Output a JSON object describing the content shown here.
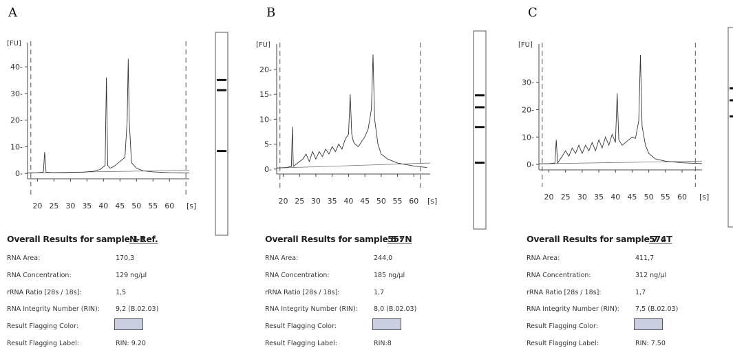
{
  "figure": {
    "panels": [
      {
        "letter": "A",
        "results": {
          "title": "Overall Results for sample 1 :",
          "sample": "N-Ref.",
          "rows": [
            {
              "label": "RNA Area:",
              "value": "170,3"
            },
            {
              "label": "RNA Concentration:",
              "value": "129 ng/µl"
            },
            {
              "label": "rRNA Ratio [28s / 18s]:",
              "value": "1,5"
            },
            {
              "label": "RNA Integrity Number (RIN):",
              "value": "9,2  (B.02.03)"
            },
            {
              "label": "Result Flagging Color:",
              "value": ""
            },
            {
              "label": "Result Flagging Label:",
              "value": "RIN: 9.20"
            }
          ],
          "flag_color": "#c9cfe0"
        }
      },
      {
        "letter": "B",
        "results": {
          "title": "Overall Results for sample 5 :",
          "sample": "557N",
          "rows": [
            {
              "label": "RNA Area:",
              "value": "244,0"
            },
            {
              "label": "RNA Concentration:",
              "value": "185 ng/µl"
            },
            {
              "label": "rRNA Ratio [28s / 18s]:",
              "value": "1,7"
            },
            {
              "label": "RNA Integrity Number (RIN):",
              "value": "8,0  (B.02.03)"
            },
            {
              "label": "Result Flagging Color:",
              "value": ""
            },
            {
              "label": "Result Flagging Label:",
              "value": "RIN:8"
            }
          ],
          "flag_color": "#c9cfe0"
        }
      },
      {
        "letter": "C",
        "results": {
          "title": "Overall Results for sample 7 :",
          "sample": "574T",
          "rows": [
            {
              "label": "RNA Area:",
              "value": "411,7"
            },
            {
              "label": "RNA Concentration:",
              "value": "312 ng/µl"
            },
            {
              "label": "rRNA Ratio [28s / 18s]:",
              "value": "1,7"
            },
            {
              "label": "RNA Integrity Number (RIN):",
              "value": "7,5  (B.02.03)"
            },
            {
              "label": "Result Flagging Color:",
              "value": ""
            },
            {
              "label": "Result Flagging Label:",
              "value": "RIN: 7.50"
            }
          ],
          "flag_color": "#c9cfe0"
        }
      }
    ]
  },
  "chart_data": [
    {
      "type": "line",
      "ylabel": "[FU]",
      "xlabel": "[s]",
      "x_ticks": [
        20,
        25,
        30,
        35,
        40,
        45,
        50,
        55,
        60
      ],
      "y_ticks": [
        0,
        10,
        20,
        30,
        40
      ],
      "xlim": [
        17,
        66
      ],
      "ylim": [
        -2,
        47
      ],
      "marker_lines_x": [
        18,
        65
      ],
      "series": [
        {
          "x": [
            17,
            20,
            21.8,
            22.2,
            22.6,
            25,
            28,
            30,
            34,
            37,
            39,
            40.5,
            40.9,
            41.3,
            42,
            43,
            44,
            45,
            46.5,
            47.2,
            47.5,
            47.8,
            48.5,
            50,
            52,
            55,
            60,
            66
          ],
          "y": [
            0.2,
            0.3,
            0.5,
            8,
            0.5,
            0.3,
            0.3,
            0.4,
            0.5,
            0.8,
            1.5,
            3,
            36,
            3,
            2,
            2.5,
            3.5,
            4.5,
            6,
            20,
            43,
            20,
            4,
            2,
            1,
            0.6,
            0.3,
            0.2
          ]
        }
      ],
      "gel_bands": [
        0.23,
        0.28,
        0.58
      ]
    },
    {
      "type": "line",
      "ylabel": "[FU]",
      "xlabel": "[s]",
      "x_ticks": [
        20,
        25,
        30,
        35,
        40,
        45,
        50,
        55,
        60
      ],
      "y_ticks": [
        0,
        5,
        10,
        15,
        20
      ],
      "xlim": [
        18,
        65
      ],
      "ylim": [
        -1,
        24
      ],
      "marker_lines_x": [
        19,
        62
      ],
      "series": [
        {
          "x": [
            18,
            21,
            22.5,
            22.8,
            23.1,
            24,
            26,
            27,
            28,
            29,
            30,
            31,
            32,
            33,
            34,
            35,
            36,
            37,
            38,
            39,
            40,
            40.5,
            41,
            41.5,
            42,
            43,
            44,
            45,
            46,
            47,
            47.5,
            48,
            49,
            50,
            52,
            55,
            60,
            64
          ],
          "y": [
            0.2,
            0.3,
            0.5,
            8.5,
            0.5,
            1,
            2,
            3,
            1.5,
            3.5,
            2,
            3.5,
            2.5,
            4,
            3,
            4.5,
            3.5,
            5,
            4,
            6,
            7,
            15,
            7,
            5.5,
            5,
            4.5,
            5.5,
            6.5,
            8,
            12,
            23,
            10,
            5,
            3,
            2,
            1.2,
            0.6,
            0.3
          ]
        }
      ],
      "gel_bands": [
        0.32,
        0.38,
        0.48,
        0.66
      ]
    },
    {
      "type": "line",
      "ylabel": "[FU]",
      "xlabel": "[s]",
      "x_ticks": [
        20,
        25,
        30,
        35,
        40,
        45,
        50,
        55,
        60
      ],
      "y_ticks": [
        0,
        10,
        20,
        30
      ],
      "xlim": [
        17,
        66
      ],
      "ylim": [
        -2,
        42
      ],
      "marker_lines_x": [
        18,
        64
      ],
      "series": [
        {
          "x": [
            17,
            20,
            21.8,
            22.2,
            22.6,
            24,
            25,
            26,
            27,
            28,
            29,
            30,
            31,
            32,
            33,
            34,
            35,
            36,
            37,
            38,
            39,
            40,
            40.5,
            41,
            42,
            43,
            44,
            45,
            46,
            47,
            47.5,
            48,
            49,
            50,
            52,
            55,
            60,
            66
          ],
          "y": [
            0.2,
            0.3,
            0.5,
            9,
            0.5,
            3,
            5,
            3,
            6,
            4,
            7,
            4,
            7,
            5,
            8,
            5,
            9,
            6,
            10,
            7,
            11,
            8,
            26,
            9,
            7,
            8,
            9,
            10,
            9.5,
            16,
            40,
            14,
            7,
            4,
            2,
            1.2,
            0.6,
            0.3
          ]
        }
      ],
      "gel_bands": [
        0.3,
        0.36,
        0.44
      ]
    }
  ]
}
